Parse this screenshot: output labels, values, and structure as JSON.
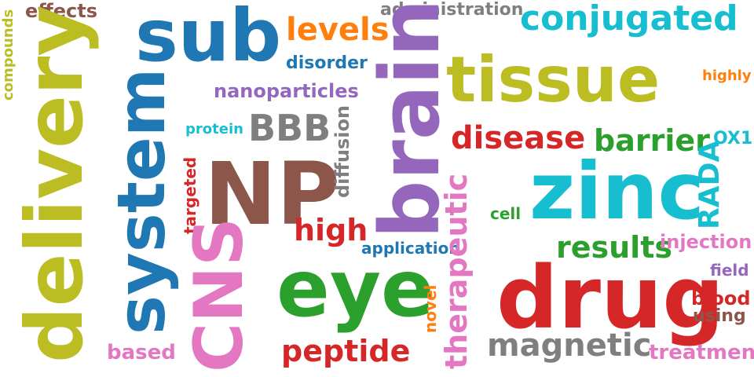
{
  "colors": {
    "olive": "#bcbd22",
    "blue": "#1f77b4",
    "cyan": "#17becf",
    "purple": "#9467bd",
    "red": "#d62728",
    "green": "#2ca02c",
    "orange": "#ff7f0e",
    "pink": "#e377c2",
    "gray": "#7f7f7f",
    "brown": "#8c564b"
  },
  "words": {
    "effects": "effects",
    "compounds": "compounds",
    "delivery": "delivery",
    "sub": "sub",
    "levels": "levels",
    "administration": "administration",
    "conjugated": "conjugated",
    "brain": "brain",
    "tissue": "tissue",
    "disorder": "disorder",
    "highly": "highly",
    "nanoparticles": "nanoparticles",
    "system": "system",
    "protein": "protein",
    "BBB": "BBB",
    "diffusion": "diffusion",
    "disease": "disease",
    "barrier": "barrier",
    "OX1": "OX1",
    "targeted": "targeted",
    "NP": "NP",
    "zinc": "zinc",
    "RADA": "RADA",
    "therapeutic": "therapeutic",
    "cell": "cell",
    "high": "high",
    "CNS": "CNS",
    "application": "application",
    "results": "results",
    "injection": "injection",
    "eye": "eye",
    "field": "field",
    "drug": "drug",
    "blood": "blood",
    "novel": "novel",
    "using": "using",
    "magnetic": "magnetic",
    "peptide": "peptide",
    "based": "based",
    "treatment": "treatment"
  }
}
